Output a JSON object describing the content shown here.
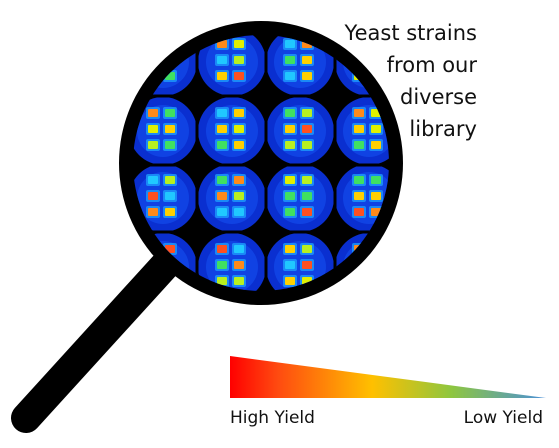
{
  "callout": {
    "lines": [
      "Yeast strains",
      "from our",
      "diverse",
      "library"
    ]
  },
  "legend": {
    "high": "High Yield",
    "low": "Low Yield"
  }
}
